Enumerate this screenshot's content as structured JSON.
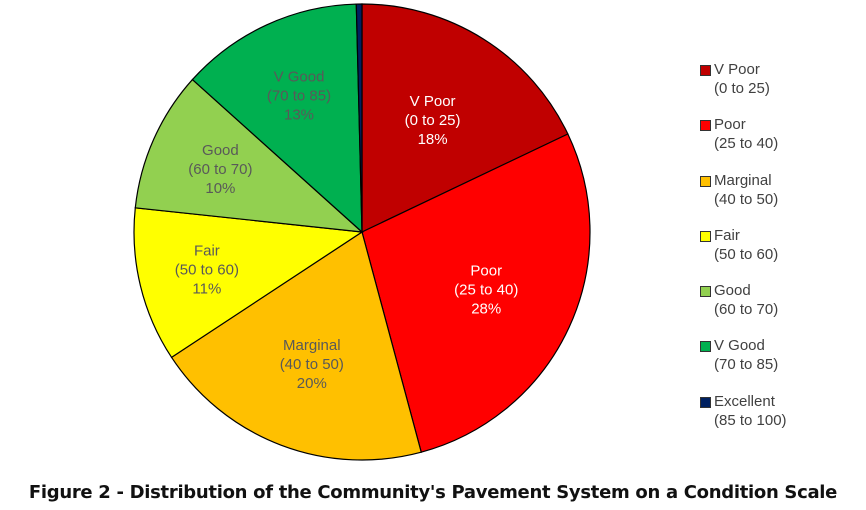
{
  "chart_data": {
    "type": "pie",
    "title": "Figure 2 - Distribution of the Community's Pavement System on a Condition Scale",
    "start_angle": "12 o'clock, clockwise",
    "categories": [
      "V Poor",
      "Poor",
      "Marginal",
      "Fair",
      "Good",
      "V Good",
      "Excellent"
    ],
    "ranges": [
      "(0 to 25)",
      "(25 to 40)",
      "(40 to 50)",
      "(50 to 60)",
      "(60 to 70)",
      "(70 to 85)",
      "(85 to 100)"
    ],
    "values": [
      18,
      28,
      20,
      11,
      10,
      13,
      0.4
    ],
    "value_labels": [
      "18%",
      "28%",
      "20%",
      "11%",
      "10%",
      "13%",
      ""
    ],
    "colors": [
      "#C00000",
      "#FF0000",
      "#FFC000",
      "#FFFF00",
      "#92D050",
      "#00B050",
      "#002060"
    ],
    "label_colors": [
      "#ffffff",
      "#ffffff",
      "#595959",
      "#595959",
      "#595959",
      "#595959",
      "#595959"
    ],
    "legend_position": "right"
  },
  "legend": {
    "items": [
      {
        "label": "V Poor",
        "range": "(0 to 25)",
        "color": "#C00000"
      },
      {
        "label": "Poor",
        "range": "(25 to 40)",
        "color": "#FF0000"
      },
      {
        "label": "Marginal",
        "range": "(40 to 50)",
        "color": "#FFC000"
      },
      {
        "label": "Fair",
        "range": "(50 to 60)",
        "color": "#FFFF00"
      },
      {
        "label": "Good",
        "range": "(60 to 70)",
        "color": "#92D050"
      },
      {
        "label": "V Good",
        "range": "(70 to 85)",
        "color": "#00B050"
      },
      {
        "label": "Excellent",
        "range": "(85 to 100)",
        "color": "#002060"
      }
    ]
  },
  "caption": "Figure 2 - Distribution of the Community's Pavement System on a Condition Scale"
}
